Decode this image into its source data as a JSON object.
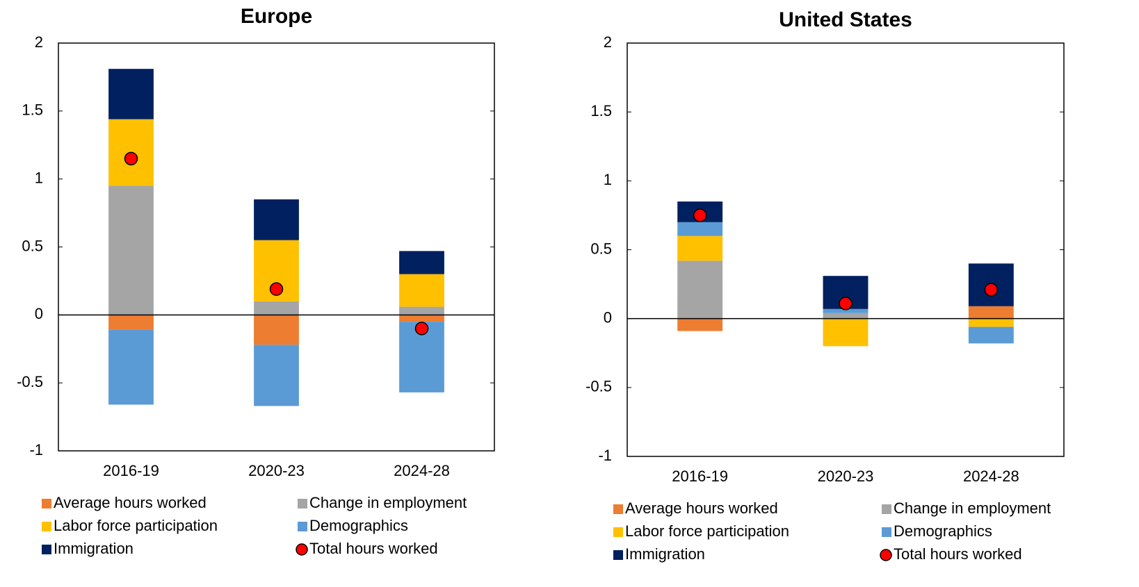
{
  "chart_data": [
    {
      "type": "stacked_bar",
      "title": "Europe",
      "categories": [
        "2016-19",
        "2020-23",
        "2024-28"
      ],
      "series": [
        {
          "name": "Average hours worked",
          "color": "#ED7D31",
          "values": [
            -0.11,
            -0.22,
            -0.05
          ]
        },
        {
          "name": "Change in employment",
          "color": "#A5A5A5",
          "values": [
            0.95,
            0.1,
            0.06
          ]
        },
        {
          "name": "Labor force participation",
          "color": "#FFC000",
          "values": [
            0.49,
            0.45,
            0.24
          ]
        },
        {
          "name": "Demographics",
          "color": "#5B9BD5",
          "values": [
            -0.55,
            -0.45,
            -0.52
          ]
        },
        {
          "name": "Immigration",
          "color": "#002060",
          "values": [
            0.37,
            0.3,
            0.17
          ]
        }
      ],
      "total": {
        "name": "Total hours worked",
        "color": "#FF0000",
        "values": [
          1.15,
          0.19,
          -0.1
        ]
      },
      "ylim": [
        -1,
        2
      ],
      "yticks": [
        -1,
        -0.5,
        0,
        0.5,
        1,
        1.5,
        2
      ]
    },
    {
      "type": "stacked_bar",
      "title": "United States",
      "categories": [
        "2016-19",
        "2020-23",
        "2024-28"
      ],
      "series": [
        {
          "name": "Average hours worked",
          "color": "#ED7D31",
          "values": [
            -0.09,
            0,
            0.09
          ]
        },
        {
          "name": "Change in employment",
          "color": "#A5A5A5",
          "values": [
            0.42,
            0.04,
            0
          ]
        },
        {
          "name": "Labor force participation",
          "color": "#FFC000",
          "values": [
            0.18,
            -0.2,
            -0.06
          ]
        },
        {
          "name": "Demographics",
          "color": "#5B9BD5",
          "values": [
            0.1,
            0.03,
            -0.12
          ]
        },
        {
          "name": "Immigration",
          "color": "#002060",
          "values": [
            0.15,
            0.24,
            0.31
          ]
        }
      ],
      "total": {
        "name": "Total hours worked",
        "color": "#FF0000",
        "values": [
          0.75,
          0.11,
          0.21
        ]
      },
      "ylim": [
        -1,
        2
      ],
      "yticks": [
        -1,
        -0.5,
        0,
        0.5,
        1,
        1.5,
        2
      ]
    }
  ]
}
